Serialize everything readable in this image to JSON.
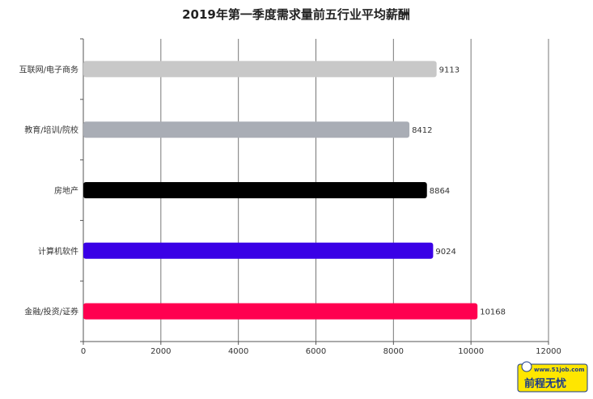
{
  "chart_data": {
    "type": "bar",
    "orientation": "horizontal",
    "title": "2019年第一季度需求量前五行业平均薪酬",
    "categories": [
      "互联网/电子商务",
      "教育/培训/院校",
      "房地产",
      "计算机软件",
      "金融/投资/证券"
    ],
    "values": [
      9113,
      8412,
      8864,
      9024,
      10168
    ],
    "colors": [
      "#c8c8c8",
      "#a9adb5",
      "#000000",
      "#3a00e6",
      "#ff0050"
    ],
    "xlim": [
      0,
      12000
    ],
    "xticks": [
      "0",
      "2000",
      "4000",
      "6000",
      "8000",
      "10000",
      "12000"
    ],
    "grid": true,
    "xlabel": "",
    "ylabel": ""
  },
  "watermark": {
    "url": "www.51job.com",
    "text": "前程无忧",
    "accent": "#ffe600"
  }
}
